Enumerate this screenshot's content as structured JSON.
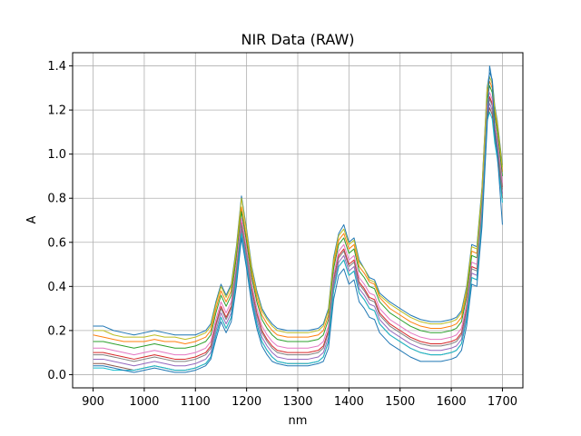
{
  "chart_data": {
    "type": "line",
    "title": "NIR Data (RAW)",
    "xlabel": "nm",
    "ylabel": "A",
    "xlim": [
      860,
      1740
    ],
    "ylim": [
      -0.06,
      1.46
    ],
    "x_ticks": [
      900,
      1000,
      1100,
      1200,
      1300,
      1400,
      1500,
      1600,
      1700
    ],
    "y_ticks": [
      0.0,
      0.2,
      0.4,
      0.6,
      0.8,
      1.0,
      1.2,
      1.4
    ],
    "x_tick_labels": [
      "900",
      "1000",
      "1100",
      "1200",
      "1300",
      "1400",
      "1500",
      "1600",
      "1700"
    ],
    "y_tick_labels": [
      "0.0",
      "0.2",
      "0.4",
      "0.6",
      "0.8",
      "1.0",
      "1.2",
      "1.4"
    ],
    "grid": true,
    "legend": "none",
    "series_colors": [
      "#1f77b4",
      "#ff7f0e",
      "#2ca02c",
      "#d62728",
      "#9467bd",
      "#8c564b",
      "#e377c2",
      "#7f7f7f",
      "#bcbd22",
      "#17becf"
    ],
    "x": [
      900,
      920,
      940,
      960,
      980,
      1000,
      1020,
      1040,
      1060,
      1080,
      1100,
      1110,
      1120,
      1130,
      1140,
      1150,
      1160,
      1170,
      1180,
      1190,
      1200,
      1210,
      1220,
      1230,
      1240,
      1250,
      1260,
      1280,
      1300,
      1320,
      1340,
      1350,
      1360,
      1370,
      1380,
      1390,
      1400,
      1410,
      1420,
      1430,
      1440,
      1450,
      1460,
      1480,
      1500,
      1520,
      1540,
      1560,
      1580,
      1600,
      1610,
      1620,
      1630,
      1640,
      1650,
      1660,
      1670,
      1675,
      1680,
      1685,
      1690,
      1700
    ],
    "series": [
      {
        "values": [
          0.22,
          0.22,
          0.2,
          0.19,
          0.18,
          0.19,
          0.2,
          0.19,
          0.18,
          0.18,
          0.18,
          0.19,
          0.2,
          0.23,
          0.33,
          0.41,
          0.36,
          0.41,
          0.58,
          0.81,
          0.66,
          0.49,
          0.38,
          0.3,
          0.26,
          0.23,
          0.21,
          0.2,
          0.2,
          0.2,
          0.21,
          0.23,
          0.3,
          0.53,
          0.64,
          0.68,
          0.6,
          0.62,
          0.52,
          0.48,
          0.44,
          0.43,
          0.37,
          0.33,
          0.3,
          0.27,
          0.25,
          0.24,
          0.24,
          0.25,
          0.26,
          0.29,
          0.4,
          0.59,
          0.58,
          0.85,
          1.3,
          1.37,
          1.34,
          1.22,
          1.15,
          0.95
        ]
      },
      {
        "values": [
          0.18,
          0.17,
          0.16,
          0.15,
          0.15,
          0.15,
          0.16,
          0.15,
          0.15,
          0.14,
          0.15,
          0.16,
          0.17,
          0.2,
          0.3,
          0.38,
          0.33,
          0.38,
          0.55,
          0.76,
          0.62,
          0.46,
          0.35,
          0.27,
          0.23,
          0.2,
          0.18,
          0.17,
          0.17,
          0.17,
          0.18,
          0.2,
          0.27,
          0.5,
          0.61,
          0.64,
          0.57,
          0.59,
          0.49,
          0.46,
          0.42,
          0.41,
          0.35,
          0.3,
          0.27,
          0.24,
          0.22,
          0.21,
          0.21,
          0.22,
          0.23,
          0.26,
          0.37,
          0.56,
          0.55,
          0.82,
          1.27,
          1.33,
          1.3,
          1.19,
          1.12,
          0.92
        ]
      },
      {
        "values": [
          0.15,
          0.15,
          0.14,
          0.13,
          0.12,
          0.13,
          0.14,
          0.13,
          0.12,
          0.12,
          0.13,
          0.14,
          0.15,
          0.18,
          0.28,
          0.36,
          0.31,
          0.36,
          0.53,
          0.74,
          0.6,
          0.44,
          0.33,
          0.25,
          0.21,
          0.18,
          0.16,
          0.15,
          0.15,
          0.15,
          0.16,
          0.18,
          0.25,
          0.48,
          0.59,
          0.62,
          0.55,
          0.57,
          0.47,
          0.44,
          0.4,
          0.39,
          0.33,
          0.28,
          0.25,
          0.22,
          0.2,
          0.19,
          0.19,
          0.2,
          0.21,
          0.24,
          0.35,
          0.54,
          0.53,
          0.8,
          1.25,
          1.31,
          1.28,
          1.17,
          1.1,
          0.9
        ]
      },
      {
        "values": [
          0.1,
          0.1,
          0.09,
          0.08,
          0.07,
          0.08,
          0.09,
          0.08,
          0.07,
          0.07,
          0.08,
          0.09,
          0.1,
          0.13,
          0.23,
          0.31,
          0.26,
          0.31,
          0.48,
          0.69,
          0.55,
          0.39,
          0.28,
          0.2,
          0.16,
          0.13,
          0.11,
          0.1,
          0.1,
          0.1,
          0.11,
          0.13,
          0.2,
          0.43,
          0.54,
          0.57,
          0.5,
          0.52,
          0.42,
          0.39,
          0.35,
          0.34,
          0.28,
          0.23,
          0.2,
          0.17,
          0.15,
          0.14,
          0.14,
          0.15,
          0.16,
          0.19,
          0.3,
          0.49,
          0.48,
          0.75,
          1.2,
          1.26,
          1.23,
          1.12,
          1.05,
          0.85
        ]
      },
      {
        "values": [
          0.07,
          0.07,
          0.06,
          0.05,
          0.04,
          0.05,
          0.06,
          0.05,
          0.04,
          0.04,
          0.05,
          0.06,
          0.07,
          0.1,
          0.2,
          0.28,
          0.23,
          0.28,
          0.45,
          0.66,
          0.52,
          0.36,
          0.25,
          0.17,
          0.13,
          0.1,
          0.08,
          0.07,
          0.07,
          0.07,
          0.08,
          0.1,
          0.17,
          0.4,
          0.51,
          0.54,
          0.47,
          0.49,
          0.39,
          0.36,
          0.32,
          0.31,
          0.25,
          0.2,
          0.17,
          0.14,
          0.12,
          0.11,
          0.11,
          0.12,
          0.13,
          0.16,
          0.27,
          0.46,
          0.45,
          0.72,
          1.17,
          1.23,
          1.2,
          1.09,
          1.02,
          0.82
        ]
      },
      {
        "values": [
          0.05,
          0.05,
          0.04,
          0.03,
          0.02,
          0.03,
          0.04,
          0.03,
          0.02,
          0.02,
          0.03,
          0.04,
          0.05,
          0.08,
          0.18,
          0.26,
          0.21,
          0.26,
          0.43,
          0.64,
          0.5,
          0.34,
          0.23,
          0.15,
          0.11,
          0.08,
          0.06,
          0.05,
          0.05,
          0.05,
          0.06,
          0.08,
          0.15,
          0.38,
          0.49,
          0.52,
          0.45,
          0.47,
          0.37,
          0.34,
          0.3,
          0.29,
          0.23,
          0.18,
          0.15,
          0.12,
          0.1,
          0.09,
          0.09,
          0.1,
          0.11,
          0.14,
          0.25,
          0.44,
          0.43,
          0.7,
          1.15,
          1.21,
          1.18,
          1.07,
          1.0,
          0.8
        ]
      },
      {
        "values": [
          0.12,
          0.12,
          0.11,
          0.1,
          0.09,
          0.1,
          0.11,
          0.1,
          0.09,
          0.09,
          0.1,
          0.11,
          0.12,
          0.15,
          0.25,
          0.33,
          0.28,
          0.33,
          0.5,
          0.71,
          0.57,
          0.41,
          0.3,
          0.22,
          0.18,
          0.15,
          0.13,
          0.12,
          0.12,
          0.12,
          0.13,
          0.15,
          0.22,
          0.45,
          0.56,
          0.59,
          0.52,
          0.54,
          0.44,
          0.41,
          0.37,
          0.36,
          0.3,
          0.25,
          0.22,
          0.19,
          0.17,
          0.16,
          0.16,
          0.17,
          0.18,
          0.21,
          0.32,
          0.51,
          0.5,
          0.77,
          1.22,
          1.28,
          1.25,
          1.14,
          1.07,
          0.87
        ]
      },
      {
        "values": [
          0.09,
          0.09,
          0.08,
          0.07,
          0.06,
          0.07,
          0.08,
          0.07,
          0.06,
          0.06,
          0.07,
          0.08,
          0.09,
          0.12,
          0.22,
          0.3,
          0.25,
          0.3,
          0.47,
          0.68,
          0.54,
          0.38,
          0.27,
          0.19,
          0.15,
          0.12,
          0.1,
          0.09,
          0.09,
          0.09,
          0.1,
          0.12,
          0.19,
          0.42,
          0.53,
          0.56,
          0.49,
          0.51,
          0.41,
          0.38,
          0.34,
          0.33,
          0.27,
          0.22,
          0.19,
          0.16,
          0.14,
          0.13,
          0.13,
          0.14,
          0.15,
          0.18,
          0.29,
          0.48,
          0.47,
          0.74,
          1.19,
          1.25,
          1.22,
          1.11,
          1.04,
          0.84
        ]
      },
      {
        "values": [
          0.2,
          0.2,
          0.18,
          0.17,
          0.17,
          0.17,
          0.18,
          0.17,
          0.17,
          0.16,
          0.17,
          0.18,
          0.19,
          0.22,
          0.32,
          0.4,
          0.35,
          0.4,
          0.57,
          0.8,
          0.65,
          0.48,
          0.37,
          0.29,
          0.25,
          0.22,
          0.2,
          0.19,
          0.19,
          0.19,
          0.2,
          0.22,
          0.29,
          0.52,
          0.63,
          0.66,
          0.59,
          0.61,
          0.51,
          0.48,
          0.43,
          0.42,
          0.36,
          0.32,
          0.29,
          0.26,
          0.24,
          0.23,
          0.23,
          0.24,
          0.25,
          0.28,
          0.39,
          0.58,
          0.57,
          0.84,
          1.29,
          1.35,
          1.32,
          1.21,
          1.14,
          0.94
        ]
      },
      {
        "values": [
          0.03,
          0.03,
          0.02,
          0.02,
          0.02,
          0.03,
          0.04,
          0.03,
          0.02,
          0.02,
          0.03,
          0.04,
          0.05,
          0.08,
          0.18,
          0.26,
          0.21,
          0.26,
          0.43,
          0.64,
          0.5,
          0.34,
          0.23,
          0.15,
          0.11,
          0.08,
          0.06,
          0.05,
          0.05,
          0.05,
          0.06,
          0.08,
          0.15,
          0.38,
          0.49,
          0.52,
          0.45,
          0.47,
          0.37,
          0.34,
          0.3,
          0.29,
          0.23,
          0.18,
          0.15,
          0.12,
          0.1,
          0.09,
          0.09,
          0.1,
          0.11,
          0.14,
          0.25,
          0.44,
          0.43,
          0.7,
          1.15,
          1.19,
          1.16,
          1.05,
          0.98,
          0.78
        ]
      },
      {
        "values": [
          0.04,
          0.04,
          0.03,
          0.02,
          0.01,
          0.02,
          0.03,
          0.02,
          0.01,
          0.01,
          0.02,
          0.03,
          0.04,
          0.07,
          0.16,
          0.24,
          0.19,
          0.24,
          0.4,
          0.62,
          0.48,
          0.32,
          0.21,
          0.13,
          0.09,
          0.06,
          0.05,
          0.04,
          0.04,
          0.04,
          0.05,
          0.06,
          0.12,
          0.34,
          0.45,
          0.48,
          0.41,
          0.43,
          0.33,
          0.3,
          0.26,
          0.25,
          0.19,
          0.14,
          0.11,
          0.08,
          0.06,
          0.06,
          0.06,
          0.07,
          0.08,
          0.11,
          0.22,
          0.41,
          0.4,
          0.67,
          1.12,
          1.4,
          1.33,
          1.1,
          1.0,
          0.68
        ]
      }
    ]
  }
}
